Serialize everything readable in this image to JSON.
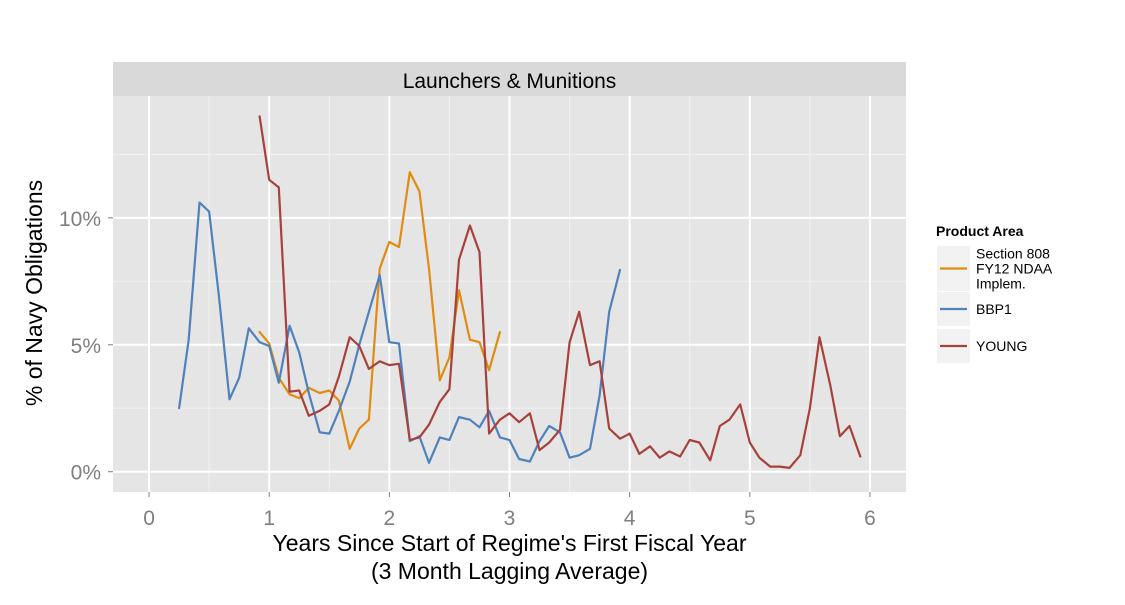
{
  "chart_data": {
    "type": "line",
    "facet_title": "Launchers & Munitions",
    "xlabel": "Years Since Start of Regime's First Fiscal Year",
    "xlabel_line2": "(3 Month Lagging Average)",
    "ylabel": "% of Navy Obligations",
    "xlim": [
      -0.3,
      6.3
    ],
    "ylim": [
      -0.8,
      14.8
    ],
    "x_ticks": [
      0,
      1,
      2,
      3,
      4,
      5,
      6
    ],
    "x_tick_labels": [
      "0",
      "1",
      "2",
      "3",
      "4",
      "5",
      "6"
    ],
    "y_ticks": [
      0,
      5,
      10
    ],
    "y_tick_labels": [
      "0%",
      "5%",
      "10%"
    ],
    "grid": true,
    "legend": {
      "title": "Product Area",
      "position": "right"
    },
    "series": [
      {
        "name": "Section 808 FY12 NDAA Implem.",
        "label_lines": [
          "Section 808",
          "FY12 NDAA",
          "Implem."
        ],
        "color": "#e08b12",
        "x": [
          0.92,
          1.0,
          1.08,
          1.17,
          1.25,
          1.33,
          1.42,
          1.5,
          1.58,
          1.67,
          1.75,
          1.83,
          1.92,
          2.0,
          2.08,
          2.17,
          2.25,
          2.33,
          2.42,
          2.5,
          2.58,
          2.67,
          2.75,
          2.83,
          2.92
        ],
        "y": [
          5.5,
          5.05,
          3.7,
          3.05,
          2.9,
          3.3,
          3.1,
          3.2,
          2.8,
          0.9,
          1.7,
          2.05,
          8.0,
          9.05,
          8.85,
          11.8,
          11.05,
          8.0,
          3.6,
          4.5,
          7.15,
          5.2,
          5.1,
          4.0,
          5.5
        ]
      },
      {
        "name": "BBP1",
        "label_lines": [
          "BBP1"
        ],
        "color": "#4f81bd",
        "x": [
          0.25,
          0.33,
          0.42,
          0.5,
          0.58,
          0.67,
          0.75,
          0.83,
          0.92,
          1.0,
          1.08,
          1.17,
          1.25,
          1.33,
          1.42,
          1.5,
          1.58,
          1.67,
          1.75,
          1.83,
          1.92,
          2.0,
          2.08,
          2.17,
          2.25,
          2.33,
          2.42,
          2.5,
          2.58,
          2.67,
          2.75,
          2.83,
          2.92,
          3.0,
          3.08,
          3.17,
          3.25,
          3.33,
          3.42,
          3.5,
          3.58,
          3.67,
          3.75,
          3.83,
          3.92
        ],
        "y": [
          2.5,
          5.2,
          10.6,
          10.25,
          7.0,
          2.85,
          3.7,
          5.65,
          5.1,
          4.95,
          3.5,
          5.75,
          4.7,
          3.1,
          1.55,
          1.5,
          2.4,
          3.55,
          5.0,
          6.3,
          7.75,
          5.1,
          5.05,
          1.2,
          1.4,
          0.35,
          1.35,
          1.25,
          2.15,
          2.05,
          1.75,
          2.4,
          1.35,
          1.25,
          0.5,
          0.4,
          1.2,
          1.8,
          1.55,
          0.55,
          0.65,
          0.9,
          3.0,
          6.3,
          7.95
        ]
      },
      {
        "name": "YOUNG",
        "label_lines": [
          "YOUNG"
        ],
        "color": "#a6413c",
        "x": [
          0.92,
          1.0,
          1.08,
          1.17,
          1.25,
          1.33,
          1.42,
          1.5,
          1.58,
          1.67,
          1.75,
          1.83,
          1.92,
          2.0,
          2.08,
          2.17,
          2.25,
          2.33,
          2.42,
          2.5,
          2.58,
          2.67,
          2.75,
          2.83,
          2.92,
          3.0,
          3.08,
          3.17,
          3.25,
          3.33,
          3.42,
          3.5,
          3.58,
          3.67,
          3.75,
          3.83,
          3.92,
          4.0,
          4.08,
          4.17,
          4.25,
          4.33,
          4.42,
          4.5,
          4.58,
          4.67,
          4.75,
          4.83,
          4.92,
          5.0,
          5.08,
          5.17,
          5.25,
          5.33,
          5.42,
          5.5,
          5.58,
          5.67,
          5.75,
          5.83,
          5.92
        ],
        "y": [
          14.0,
          11.5,
          11.2,
          3.15,
          3.2,
          2.2,
          2.4,
          2.65,
          3.75,
          5.3,
          4.95,
          4.05,
          4.35,
          4.2,
          4.25,
          1.25,
          1.35,
          1.85,
          2.75,
          3.25,
          8.35,
          9.7,
          8.65,
          1.5,
          2.05,
          2.3,
          1.95,
          2.3,
          0.85,
          1.15,
          1.65,
          5.1,
          6.3,
          4.2,
          4.35,
          1.7,
          1.3,
          1.5,
          0.7,
          1.0,
          0.55,
          0.8,
          0.6,
          1.25,
          1.15,
          0.45,
          1.8,
          2.05,
          2.65,
          1.15,
          0.55,
          0.2,
          0.2,
          0.15,
          0.65,
          2.5,
          5.3,
          3.4,
          1.4,
          1.8,
          0.6
        ]
      }
    ]
  }
}
